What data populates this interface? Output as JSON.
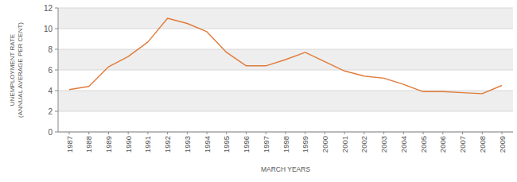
{
  "chart_data": {
    "type": "line",
    "x_label": "MARCH YEARS",
    "y_label": [
      "UNEMPLOYMENT RATE",
      "(ANNUAL AVERAGE PER CENT)"
    ],
    "categories": [
      "1987",
      "1988",
      "1989",
      "1990",
      "1991",
      "1992",
      "1993",
      "1994",
      "1995",
      "1996",
      "1997",
      "1998",
      "1999",
      "2000",
      "2001",
      "2002",
      "2003",
      "2004",
      "2005",
      "2006",
      "2007",
      "2008",
      "2009"
    ],
    "values": [
      4.1,
      4.4,
      6.3,
      7.3,
      8.7,
      11.0,
      10.5,
      9.7,
      7.7,
      6.4,
      6.4,
      7.0,
      7.7,
      6.8,
      5.9,
      5.4,
      5.2,
      4.6,
      3.9,
      3.9,
      3.8,
      3.7,
      4.5
    ],
    "color": "#e07b39",
    "ylim": [
      0,
      12
    ],
    "yticks": [
      0,
      2,
      4,
      6,
      8,
      10,
      12
    ],
    "grid": true
  }
}
